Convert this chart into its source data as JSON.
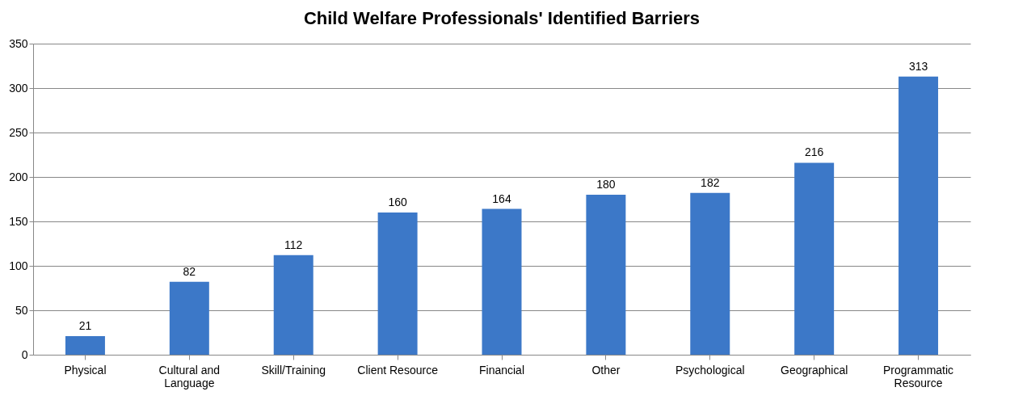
{
  "chart_data": {
    "type": "bar",
    "title": "Child Welfare Professionals' Identified Barriers",
    "categories": [
      "Physical",
      "Cultural and Language",
      "Skill/Training",
      "Client Resource",
      "Financial",
      "Other",
      "Psychological",
      "Geographical",
      "Programmatic Resource"
    ],
    "values": [
      21,
      82,
      112,
      160,
      164,
      180,
      182,
      216,
      313
    ],
    "color": "#3c78c8",
    "ylim": [
      0,
      350
    ],
    "yticks": [
      0,
      50,
      100,
      150,
      200,
      250,
      300,
      350
    ],
    "grid": "y",
    "data_labels": true
  }
}
